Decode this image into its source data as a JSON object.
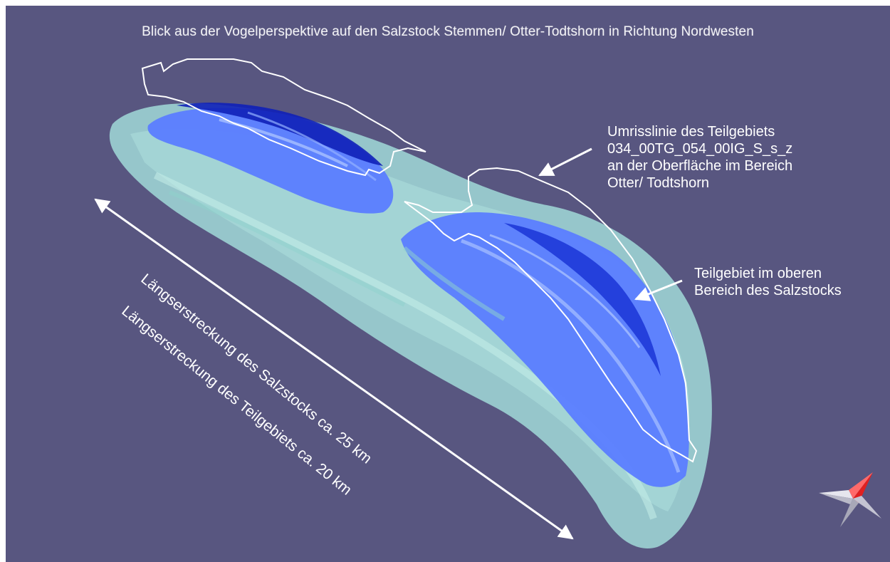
{
  "title": "Blick aus der Vogelperspektive auf den Salzstock Stemmen/ Otter-Todtshorn in Richtung Nordwesten",
  "annotations": {
    "outline": {
      "lines": [
        "Umrisslinie des Teilgebiets",
        "034_00TG_054_00IG_S_s_z",
        "an der Oberfläche im Bereich",
        "Otter/ Todtshorn"
      ]
    },
    "subarea": {
      "lines": [
        "Teilgebiet im oberen",
        "Bereich des Salzstocks"
      ]
    }
  },
  "extents": {
    "salt_dome": "Längserstreckung des Salzstocks ca. 25 km",
    "subarea": "Längserstreckung des Teilgebiets ca. 20 km"
  },
  "colors": {
    "background": "#585680",
    "salt_dome": "#a8e6e0",
    "subarea": "#5b7dff",
    "subarea_dark": "#0f20b8",
    "outline": "#ffffff",
    "compass_red": "#e02020"
  },
  "icons": {
    "compass": "north-arrow-icon"
  }
}
